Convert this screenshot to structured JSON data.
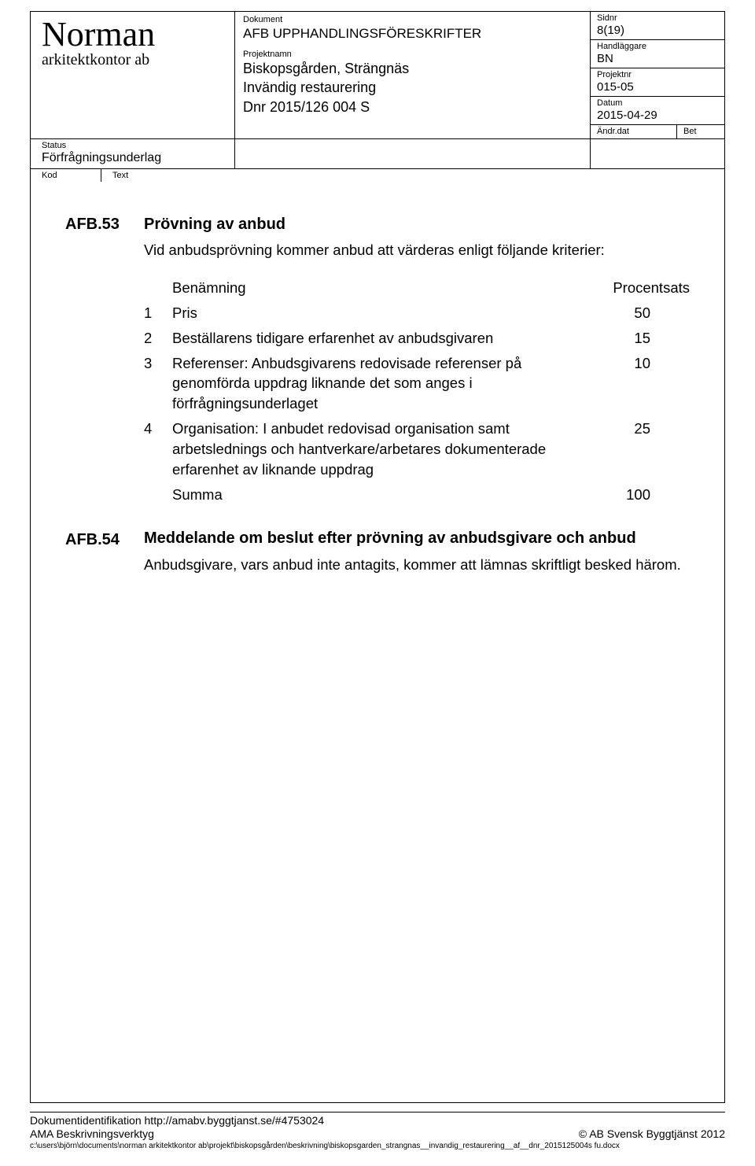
{
  "header": {
    "company_name": "Norman",
    "company_sub": "arkitektkontor ab",
    "status_label": "Status",
    "status_value": "Förfrågningsunderlag",
    "kod_label": "Kod",
    "text_label": "Text",
    "dokument_label": "Dokument",
    "dokument_value": "AFB   UPPHANDLINGSFÖRESKRIFTER",
    "projektnamn_label": "Projektnamn",
    "projektnamn_line1": "Biskopsgården, Strängnäs",
    "projektnamn_line2": "Invändig restaurering",
    "projektnamn_line3": "Dnr 2015/126 004 S",
    "sidnr_label": "Sidnr",
    "sidnr_value": "8(19)",
    "handlaggare_label": "Handläggare",
    "handlaggare_value": "BN",
    "projektnr_label": "Projektnr",
    "projektnr_value": "015-05",
    "datum_label": "Datum",
    "datum_value": "2015-04-29",
    "andr_label": "Ändr.dat",
    "bet_label": "Bet"
  },
  "section53": {
    "code": "AFB.53",
    "title": "Prövning av anbud",
    "intro": "Vid anbudsprövning kommer anbud att värderas enligt följande kriterier:"
  },
  "criteria": {
    "col_benamnning": "Benämning",
    "col_procentsats": "Procentsats",
    "rows": [
      {
        "num": "1",
        "text": "Pris",
        "value": "50"
      },
      {
        "num": "2",
        "text": "Beställarens tidigare erfarenhet av anbudsgivaren",
        "value": "15"
      },
      {
        "num": "3",
        "text": "Referenser: Anbudsgivarens redovisade referenser på genomförda uppdrag liknande det som anges i förfrågningsunderlaget",
        "value": "10"
      },
      {
        "num": "4",
        "text": "Organisation: I anbudet redovisad organisation samt arbetslednings och hantverkare/arbetares dokumenterade erfarenhet av liknande uppdrag",
        "value": "25"
      }
    ],
    "sum_label": "Summa",
    "sum_value": "100"
  },
  "section54": {
    "code": "AFB.54",
    "title": "Meddelande om beslut efter prövning av anbudsgivare och anbud",
    "body": "Anbudsgivare, vars anbud inte antagits, kommer att lämnas skriftligt besked härom."
  },
  "footer": {
    "doc_id": "Dokumentidentifikation http://amabv.byggtjanst.se/#4753024",
    "tool": "AMA Beskrivningsverktyg",
    "copyright": "© AB Svensk Byggtjänst 2012",
    "path": "c:\\users\\björn\\documents\\norman arkitektkontor ab\\projekt\\biskopsgården\\beskrivning\\biskopsgarden_strangnas__invandig_restaurering__af__dnr_2015125004s fu.docx"
  },
  "colors": {
    "text": "#000000",
    "border": "#000000",
    "background": "#ffffff"
  },
  "typography": {
    "body_font": "Arial",
    "company_font": "Times New Roman",
    "company_name_size_pt": 33,
    "body_size_pt": 14,
    "small_label_pt": 8
  }
}
